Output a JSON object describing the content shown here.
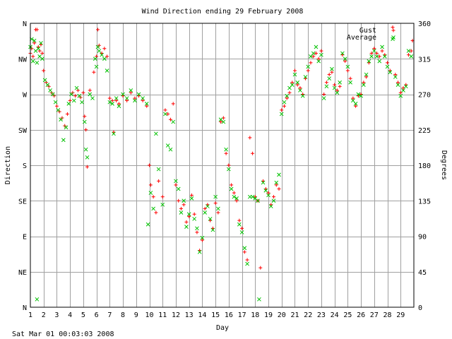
{
  "chart_data": {
    "type": "scatter",
    "title": "Wind Direction ending 29 February 2008",
    "xlabel": "Day",
    "ylabel_left": "Direction",
    "ylabel_right": "Degrees",
    "footer": "Sat Mar 01 00:03:03 2008",
    "xlim": [
      1,
      30
    ],
    "ylim": [
      0,
      360
    ],
    "x_ticks": [
      "1",
      "2",
      "3",
      "4",
      "5",
      "6",
      "7",
      "8",
      "9",
      "10",
      "11",
      "12",
      "13",
      "14",
      "15",
      "16",
      "17",
      "18",
      "19",
      "20",
      "21",
      "22",
      "23",
      "24",
      "25",
      "26",
      "27",
      "28",
      "29"
    ],
    "y_ticks_left": [
      {
        "v": 0,
        "label": "N"
      },
      {
        "v": 45,
        "label": "NE"
      },
      {
        "v": 90,
        "label": "E"
      },
      {
        "v": 135,
        "label": "SE"
      },
      {
        "v": 180,
        "label": "S"
      },
      {
        "v": 225,
        "label": "SW"
      },
      {
        "v": 270,
        "label": "W"
      },
      {
        "v": 315,
        "label": "NW"
      },
      {
        "v": 360,
        "label": "N"
      }
    ],
    "y_ticks_right": [
      "0",
      "45",
      "90",
      "135",
      "180",
      "225",
      "270",
      "315",
      "360"
    ],
    "grid": true,
    "legend_position": "top-right",
    "series": [
      {
        "name": "Gust",
        "marker": "plus",
        "color": "#ff0000",
        "points": [
          [
            1.0,
            322
          ],
          [
            1.1,
            328
          ],
          [
            1.2,
            318
          ],
          [
            1.3,
            335
          ],
          [
            1.4,
            352
          ],
          [
            1.5,
            352
          ],
          [
            1.6,
            330
          ],
          [
            1.7,
            325
          ],
          [
            1.8,
            333
          ],
          [
            1.9,
            322
          ],
          [
            2.0,
            300
          ],
          [
            2.2,
            285
          ],
          [
            2.4,
            280
          ],
          [
            2.6,
            272
          ],
          [
            2.8,
            268
          ],
          [
            3.0,
            255
          ],
          [
            3.2,
            248
          ],
          [
            3.4,
            240
          ],
          [
            3.6,
            230
          ],
          [
            3.8,
            245
          ],
          [
            4.0,
            262
          ],
          [
            4.2,
            272
          ],
          [
            4.4,
            268
          ],
          [
            4.6,
            275
          ],
          [
            4.8,
            266
          ],
          [
            5.0,
            272
          ],
          [
            5.1,
            242
          ],
          [
            5.2,
            225
          ],
          [
            5.3,
            178
          ],
          [
            5.5,
            275
          ],
          [
            5.8,
            298
          ],
          [
            6.0,
            318
          ],
          [
            6.1,
            352
          ],
          [
            6.2,
            332
          ],
          [
            6.4,
            322
          ],
          [
            6.6,
            328
          ],
          [
            6.8,
            318
          ],
          [
            7.0,
            265
          ],
          [
            7.2,
            262
          ],
          [
            7.3,
            222
          ],
          [
            7.5,
            262
          ],
          [
            7.7,
            258
          ],
          [
            8.0,
            268
          ],
          [
            8.3,
            262
          ],
          [
            8.6,
            272
          ],
          [
            8.9,
            265
          ],
          [
            9.2,
            268
          ],
          [
            9.5,
            262
          ],
          [
            9.8,
            255
          ],
          [
            10.0,
            180
          ],
          [
            10.1,
            155
          ],
          [
            10.3,
            140
          ],
          [
            10.5,
            120
          ],
          [
            10.7,
            160
          ],
          [
            11.0,
            140
          ],
          [
            11.2,
            250
          ],
          [
            11.4,
            245
          ],
          [
            11.6,
            238
          ],
          [
            11.8,
            258
          ],
          [
            12.0,
            155
          ],
          [
            12.2,
            135
          ],
          [
            12.4,
            125
          ],
          [
            12.6,
            130
          ],
          [
            12.8,
            108
          ],
          [
            13.0,
            115
          ],
          [
            13.2,
            142
          ],
          [
            13.4,
            118
          ],
          [
            13.6,
            95
          ],
          [
            13.8,
            72
          ],
          [
            14.0,
            85
          ],
          [
            14.2,
            125
          ],
          [
            14.4,
            130
          ],
          [
            14.6,
            110
          ],
          [
            14.8,
            100
          ],
          [
            15.0,
            132
          ],
          [
            15.2,
            120
          ],
          [
            15.4,
            235
          ],
          [
            15.6,
            240
          ],
          [
            15.8,
            195
          ],
          [
            16.0,
            180
          ],
          [
            16.2,
            155
          ],
          [
            16.4,
            145
          ],
          [
            16.6,
            135
          ],
          [
            16.8,
            110
          ],
          [
            17.0,
            100
          ],
          [
            17.2,
            70
          ],
          [
            17.4,
            60
          ],
          [
            17.6,
            215
          ],
          [
            17.8,
            195
          ],
          [
            18.0,
            140
          ],
          [
            18.2,
            135
          ],
          [
            18.4,
            50
          ],
          [
            18.6,
            160
          ],
          [
            18.8,
            150
          ],
          [
            19.0,
            145
          ],
          [
            19.2,
            130
          ],
          [
            19.4,
            140
          ],
          [
            19.6,
            155
          ],
          [
            19.8,
            150
          ],
          [
            20.0,
            250
          ],
          [
            20.2,
            255
          ],
          [
            20.4,
            265
          ],
          [
            20.6,
            272
          ],
          [
            20.8,
            285
          ],
          [
            21.0,
            300
          ],
          [
            21.2,
            282
          ],
          [
            21.4,
            278
          ],
          [
            21.6,
            270
          ],
          [
            21.8,
            290
          ],
          [
            22.0,
            300
          ],
          [
            22.2,
            310
          ],
          [
            22.4,
            318
          ],
          [
            22.6,
            322
          ],
          [
            22.8,
            315
          ],
          [
            23.0,
            325
          ],
          [
            23.2,
            270
          ],
          [
            23.4,
            285
          ],
          [
            23.6,
            295
          ],
          [
            23.8,
            298
          ],
          [
            24.0,
            282
          ],
          [
            24.2,
            275
          ],
          [
            24.4,
            280
          ],
          [
            24.6,
            320
          ],
          [
            24.8,
            312
          ],
          [
            25.0,
            300
          ],
          [
            25.2,
            290
          ],
          [
            25.4,
            265
          ],
          [
            25.6,
            255
          ],
          [
            25.8,
            268
          ],
          [
            26.0,
            270
          ],
          [
            26.2,
            285
          ],
          [
            26.4,
            292
          ],
          [
            26.6,
            310
          ],
          [
            26.8,
            322
          ],
          [
            27.0,
            328
          ],
          [
            27.2,
            322
          ],
          [
            27.4,
            318
          ],
          [
            27.6,
            325
          ],
          [
            27.8,
            320
          ],
          [
            28.0,
            310
          ],
          [
            28.2,
            300
          ],
          [
            28.4,
            355
          ],
          [
            28.6,
            295
          ],
          [
            28.8,
            285
          ],
          [
            29.0,
            272
          ],
          [
            29.2,
            278
          ],
          [
            29.4,
            282
          ],
          [
            29.6,
            320
          ],
          [
            29.8,
            325
          ],
          [
            29.9,
            338
          ]
        ]
      },
      {
        "name": "Average",
        "marker": "cross",
        "color": "#00c000",
        "points": [
          [
            1.0,
            330
          ],
          [
            1.1,
            340
          ],
          [
            1.2,
            312
          ],
          [
            1.3,
            338
          ],
          [
            1.4,
            325
          ],
          [
            1.5,
            310
          ],
          [
            1.6,
            328
          ],
          [
            1.7,
            318
          ],
          [
            1.8,
            335
          ],
          [
            1.9,
            315
          ],
          [
            2.1,
            288
          ],
          [
            2.3,
            282
          ],
          [
            2.5,
            275
          ],
          [
            2.7,
            270
          ],
          [
            2.9,
            260
          ],
          [
            3.1,
            250
          ],
          [
            3.3,
            238
          ],
          [
            3.5,
            212
          ],
          [
            3.7,
            228
          ],
          [
            3.9,
            258
          ],
          [
            4.1,
            270
          ],
          [
            4.3,
            262
          ],
          [
            4.5,
            278
          ],
          [
            4.7,
            268
          ],
          [
            4.9,
            260
          ],
          [
            5.1,
            235
          ],
          [
            5.2,
            200
          ],
          [
            5.3,
            190
          ],
          [
            5.5,
            270
          ],
          [
            5.7,
            265
          ],
          [
            5.9,
            315
          ],
          [
            6.0,
            305
          ],
          [
            6.1,
            330
          ],
          [
            6.2,
            325
          ],
          [
            6.4,
            320
          ],
          [
            6.6,
            315
          ],
          [
            6.8,
            300
          ],
          [
            7.0,
            260
          ],
          [
            7.2,
            258
          ],
          [
            7.3,
            220
          ],
          [
            7.5,
            265
          ],
          [
            7.7,
            255
          ],
          [
            8.0,
            270
          ],
          [
            8.3,
            265
          ],
          [
            8.6,
            275
          ],
          [
            8.9,
            262
          ],
          [
            9.2,
            270
          ],
          [
            9.5,
            265
          ],
          [
            9.8,
            258
          ],
          [
            9.9,
            105
          ],
          [
            10.1,
            145
          ],
          [
            10.3,
            125
          ],
          [
            10.5,
            220
          ],
          [
            10.7,
            175
          ],
          [
            11.0,
            130
          ],
          [
            11.2,
            245
          ],
          [
            11.4,
            205
          ],
          [
            11.6,
            200
          ],
          [
            11.8,
            235
          ],
          [
            12.0,
            160
          ],
          [
            12.2,
            150
          ],
          [
            12.4,
            120
          ],
          [
            12.6,
            135
          ],
          [
            12.8,
            102
          ],
          [
            13.0,
            118
          ],
          [
            13.2,
            138
          ],
          [
            13.4,
            112
          ],
          [
            13.6,
            100
          ],
          [
            13.8,
            70
          ],
          [
            14.0,
            88
          ],
          [
            14.2,
            120
          ],
          [
            14.4,
            128
          ],
          [
            14.6,
            112
          ],
          [
            14.8,
            98
          ],
          [
            15.0,
            140
          ],
          [
            15.2,
            125
          ],
          [
            15.4,
            238
          ],
          [
            15.6,
            235
          ],
          [
            15.8,
            200
          ],
          [
            16.0,
            175
          ],
          [
            16.2,
            150
          ],
          [
            16.4,
            140
          ],
          [
            16.6,
            138
          ],
          [
            16.8,
            105
          ],
          [
            17.0,
            95
          ],
          [
            17.2,
            75
          ],
          [
            17.4,
            55
          ],
          [
            17.6,
            140
          ],
          [
            17.8,
            140
          ],
          [
            18.0,
            138
          ],
          [
            18.2,
            135
          ],
          [
            18.3,
            10
          ],
          [
            18.6,
            158
          ],
          [
            18.8,
            148
          ],
          [
            19.0,
            142
          ],
          [
            19.2,
            128
          ],
          [
            19.4,
            135
          ],
          [
            19.6,
            158
          ],
          [
            19.8,
            168
          ],
          [
            20.0,
            245
          ],
          [
            20.2,
            260
          ],
          [
            20.4,
            268
          ],
          [
            20.6,
            278
          ],
          [
            20.8,
            282
          ],
          [
            21.0,
            295
          ],
          [
            21.2,
            285
          ],
          [
            21.4,
            275
          ],
          [
            21.6,
            268
          ],
          [
            21.8,
            292
          ],
          [
            22.0,
            305
          ],
          [
            22.2,
            318
          ],
          [
            22.4,
            322
          ],
          [
            22.6,
            330
          ],
          [
            22.8,
            312
          ],
          [
            23.0,
            320
          ],
          [
            23.2,
            265
          ],
          [
            23.4,
            280
          ],
          [
            23.6,
            290
          ],
          [
            23.8,
            302
          ],
          [
            24.0,
            278
          ],
          [
            24.2,
            272
          ],
          [
            24.4,
            285
          ],
          [
            24.6,
            322
          ],
          [
            24.8,
            315
          ],
          [
            25.0,
            305
          ],
          [
            25.2,
            285
          ],
          [
            25.4,
            262
          ],
          [
            25.6,
            258
          ],
          [
            25.8,
            270
          ],
          [
            26.0,
            268
          ],
          [
            26.2,
            282
          ],
          [
            26.4,
            295
          ],
          [
            26.6,
            312
          ],
          [
            26.8,
            318
          ],
          [
            27.0,
            325
          ],
          [
            27.2,
            318
          ],
          [
            27.4,
            312
          ],
          [
            27.6,
            330
          ],
          [
            27.8,
            318
          ],
          [
            28.0,
            305
          ],
          [
            28.2,
            298
          ],
          [
            28.4,
            340
          ],
          [
            28.6,
            292
          ],
          [
            28.8,
            282
          ],
          [
            29.0,
            268
          ],
          [
            29.2,
            275
          ],
          [
            29.4,
            280
          ],
          [
            29.6,
            325
          ],
          [
            29.8,
            318
          ],
          [
            1.5,
            10
          ]
        ]
      }
    ]
  }
}
